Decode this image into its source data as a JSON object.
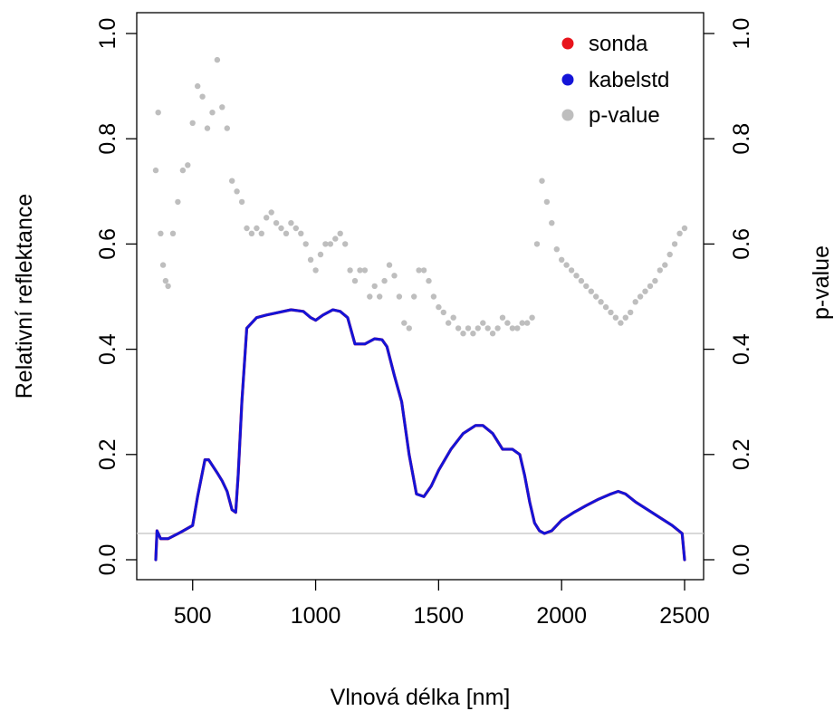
{
  "chart_data": {
    "type": "line",
    "title": "",
    "xlabel": "Vlnová délka [nm]",
    "ylabel": "Relativní reflektance",
    "y2label": "p-value",
    "xlim": [
      350,
      2500
    ],
    "ylim": [
      0,
      1
    ],
    "y2lim": [
      0,
      1
    ],
    "x_ticks": [
      500,
      1000,
      1500,
      2000,
      2500
    ],
    "y_ticks": [
      0.0,
      0.2,
      0.4,
      0.6,
      0.8,
      1.0
    ],
    "y_tick_labels": [
      "0.0",
      "0.2",
      "0.4",
      "0.6",
      "0.8",
      "1.0"
    ],
    "y2_ticks": [
      0.0,
      0.2,
      0.4,
      0.6,
      0.8,
      1.0
    ],
    "y2_tick_labels": [
      "0.0",
      "0.2",
      "0.4",
      "0.6",
      "0.8",
      "1.0"
    ],
    "grid": false,
    "legend_position": "top-right",
    "reference_line": {
      "y": 0.05,
      "color": "#c8c8c8"
    },
    "series": [
      {
        "name": "sonda",
        "color": "#e8141c",
        "style": "line",
        "x": [
          350,
          355,
          370,
          400,
          450,
          500,
          520,
          550,
          565,
          600,
          620,
          640,
          660,
          675,
          685,
          700,
          720,
          760,
          800,
          850,
          900,
          950,
          980,
          1000,
          1030,
          1070,
          1100,
          1130,
          1160,
          1200,
          1240,
          1270,
          1290,
          1320,
          1350,
          1380,
          1410,
          1440,
          1470,
          1500,
          1550,
          1600,
          1650,
          1680,
          1720,
          1760,
          1800,
          1830,
          1850,
          1870,
          1890,
          1910,
          1930,
          1960,
          2000,
          2050,
          2100,
          2150,
          2200,
          2230,
          2260,
          2300,
          2350,
          2400,
          2450,
          2490,
          2500
        ],
        "values": [
          0.0,
          0.055,
          0.04,
          0.04,
          0.052,
          0.065,
          0.12,
          0.19,
          0.19,
          0.165,
          0.15,
          0.13,
          0.095,
          0.09,
          0.16,
          0.3,
          0.44,
          0.46,
          0.465,
          0.47,
          0.475,
          0.472,
          0.46,
          0.455,
          0.465,
          0.475,
          0.472,
          0.46,
          0.41,
          0.41,
          0.42,
          0.418,
          0.405,
          0.35,
          0.3,
          0.2,
          0.125,
          0.12,
          0.14,
          0.17,
          0.21,
          0.24,
          0.255,
          0.255,
          0.24,
          0.21,
          0.21,
          0.2,
          0.16,
          0.11,
          0.07,
          0.055,
          0.05,
          0.055,
          0.075,
          0.09,
          0.103,
          0.115,
          0.125,
          0.13,
          0.125,
          0.11,
          0.095,
          0.08,
          0.065,
          0.05,
          0.0
        ]
      },
      {
        "name": "kabelstd",
        "color": "#1414d8",
        "style": "line",
        "x": [
          350,
          355,
          370,
          400,
          450,
          500,
          520,
          550,
          565,
          600,
          620,
          640,
          660,
          675,
          685,
          700,
          720,
          760,
          800,
          850,
          900,
          950,
          980,
          1000,
          1030,
          1070,
          1100,
          1130,
          1160,
          1200,
          1240,
          1270,
          1290,
          1320,
          1350,
          1380,
          1410,
          1440,
          1470,
          1500,
          1550,
          1600,
          1650,
          1680,
          1720,
          1760,
          1800,
          1830,
          1850,
          1870,
          1890,
          1910,
          1930,
          1960,
          2000,
          2050,
          2100,
          2150,
          2200,
          2230,
          2260,
          2300,
          2350,
          2400,
          2450,
          2490,
          2500
        ],
        "values": [
          0.0,
          0.055,
          0.04,
          0.04,
          0.052,
          0.065,
          0.12,
          0.19,
          0.19,
          0.165,
          0.15,
          0.13,
          0.095,
          0.09,
          0.16,
          0.3,
          0.44,
          0.46,
          0.465,
          0.47,
          0.475,
          0.472,
          0.46,
          0.455,
          0.465,
          0.475,
          0.472,
          0.46,
          0.41,
          0.41,
          0.42,
          0.418,
          0.405,
          0.35,
          0.3,
          0.2,
          0.125,
          0.12,
          0.14,
          0.17,
          0.21,
          0.24,
          0.255,
          0.255,
          0.24,
          0.21,
          0.21,
          0.2,
          0.16,
          0.11,
          0.07,
          0.055,
          0.05,
          0.055,
          0.075,
          0.09,
          0.103,
          0.115,
          0.125,
          0.13,
          0.125,
          0.11,
          0.095,
          0.08,
          0.065,
          0.05,
          0.0
        ]
      },
      {
        "name": "p-value",
        "color": "#bebebe",
        "style": "points",
        "axis": "y2",
        "x": [
          350,
          360,
          370,
          380,
          390,
          400,
          420,
          440,
          460,
          480,
          500,
          520,
          540,
          560,
          580,
          600,
          620,
          640,
          660,
          680,
          700,
          720,
          740,
          760,
          780,
          800,
          820,
          840,
          860,
          880,
          900,
          920,
          940,
          960,
          980,
          1000,
          1020,
          1040,
          1060,
          1080,
          1100,
          1120,
          1140,
          1160,
          1180,
          1200,
          1220,
          1240,
          1260,
          1280,
          1300,
          1320,
          1340,
          1360,
          1380,
          1400,
          1420,
          1440,
          1460,
          1480,
          1500,
          1520,
          1540,
          1560,
          1580,
          1600,
          1620,
          1640,
          1660,
          1680,
          1700,
          1720,
          1740,
          1760,
          1780,
          1800,
          1820,
          1840,
          1860,
          1880,
          1900,
          1920,
          1940,
          1960,
          1980,
          2000,
          2020,
          2040,
          2060,
          2080,
          2100,
          2120,
          2140,
          2160,
          2180,
          2200,
          2220,
          2240,
          2260,
          2280,
          2300,
          2320,
          2340,
          2360,
          2380,
          2400,
          2420,
          2440,
          2460,
          2480,
          2500
        ],
        "values": [
          0.74,
          0.85,
          0.62,
          0.56,
          0.53,
          0.52,
          0.62,
          0.68,
          0.74,
          0.75,
          0.83,
          0.9,
          0.88,
          0.82,
          0.85,
          0.95,
          0.86,
          0.82,
          0.72,
          0.7,
          0.68,
          0.63,
          0.62,
          0.63,
          0.62,
          0.65,
          0.66,
          0.64,
          0.63,
          0.62,
          0.64,
          0.63,
          0.62,
          0.6,
          0.57,
          0.55,
          0.58,
          0.6,
          0.6,
          0.61,
          0.62,
          0.6,
          0.55,
          0.53,
          0.55,
          0.55,
          0.5,
          0.52,
          0.5,
          0.53,
          0.56,
          0.54,
          0.5,
          0.45,
          0.44,
          0.5,
          0.55,
          0.55,
          0.53,
          0.5,
          0.48,
          0.47,
          0.45,
          0.46,
          0.44,
          0.43,
          0.44,
          0.43,
          0.44,
          0.45,
          0.44,
          0.43,
          0.44,
          0.46,
          0.45,
          0.44,
          0.44,
          0.45,
          0.45,
          0.46,
          0.6,
          0.72,
          0.68,
          0.64,
          0.59,
          0.57,
          0.56,
          0.55,
          0.54,
          0.53,
          0.52,
          0.51,
          0.5,
          0.49,
          0.48,
          0.47,
          0.46,
          0.45,
          0.46,
          0.47,
          0.49,
          0.5,
          0.51,
          0.52,
          0.53,
          0.55,
          0.56,
          0.58,
          0.6,
          0.62,
          0.63
        ]
      }
    ]
  }
}
